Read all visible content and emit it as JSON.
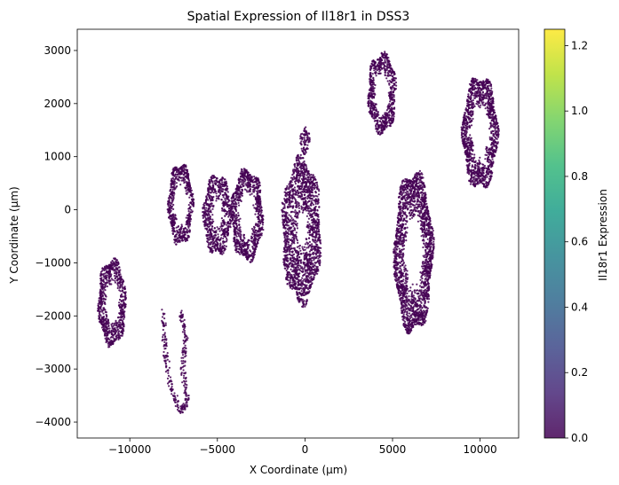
{
  "chart_data": {
    "type": "scatter",
    "title": "Spatial Expression of Il18r1 in DSS3",
    "xlabel": "X Coordinate (µm)",
    "ylabel": "Y Coordinate (µm)",
    "xlim": [
      -13000,
      12200
    ],
    "ylim": [
      -4300,
      3400
    ],
    "xticks": [
      -10000,
      -5000,
      0,
      5000,
      10000
    ],
    "xtick_labels": [
      "−10000",
      "−5000",
      "0",
      "5000",
      "10000"
    ],
    "yticks": [
      -4000,
      -3000,
      -2000,
      -1000,
      0,
      1000,
      2000,
      3000
    ],
    "ytick_labels": [
      "−4000",
      "−3000",
      "−2000",
      "−1000",
      "0",
      "1000",
      "2000",
      "3000"
    ],
    "grid": false,
    "marker_color": "#440154",
    "colorbar": {
      "label": "Il18r1 Expression",
      "colormap": "viridis",
      "range": [
        0,
        1.25
      ],
      "ticks": [
        0.0,
        0.2,
        0.4,
        0.6,
        0.8,
        1.0,
        1.2
      ],
      "tick_labels": [
        "0.0",
        "0.2",
        "0.4",
        "0.6",
        "0.8",
        "1.0",
        "1.2"
      ]
    },
    "tissue_sections": [
      {
        "cx": -11000,
        "cy": -1750,
        "rx": 800,
        "ry": 800,
        "hole": 0.45,
        "value": 0
      },
      {
        "cx": -7100,
        "cy": 100,
        "rx": 700,
        "ry": 750,
        "hole": 0.5,
        "value": 0
      },
      {
        "cx": -5000,
        "cy": -100,
        "rx": 800,
        "ry": 750,
        "hole": 0.3,
        "value": 0
      },
      {
        "cx": -3300,
        "cy": -100,
        "rx": 900,
        "ry": 850,
        "hole": 0.45,
        "value": 0
      },
      {
        "cx": -200,
        "cy": -400,
        "rx": 1100,
        "ry": 1350,
        "hole": 0.2,
        "value": 0
      },
      {
        "cx": 0,
        "cy": 1300,
        "rx": 300,
        "ry": 250,
        "hole": 0.0,
        "value": 0
      },
      {
        "cx": 4400,
        "cy": 2200,
        "rx": 800,
        "ry": 750,
        "hole": 0.45,
        "value": 0
      },
      {
        "cx": 6200,
        "cy": -800,
        "rx": 1100,
        "ry": 1500,
        "hole": 0.4,
        "value": 0
      },
      {
        "cx": 10000,
        "cy": 1450,
        "rx": 1000,
        "ry": 1050,
        "hole": 0.45,
        "value": 0
      }
    ],
    "tissue_strands": [
      {
        "points": [
          [
            -8100,
            -1900
          ],
          [
            -8000,
            -2600
          ],
          [
            -7700,
            -3300
          ],
          [
            -7100,
            -3800
          ],
          [
            -6700,
            -3600
          ],
          [
            -7000,
            -3000
          ],
          [
            -6800,
            -2400
          ],
          [
            -7100,
            -1900
          ]
        ],
        "value": 0
      }
    ]
  }
}
